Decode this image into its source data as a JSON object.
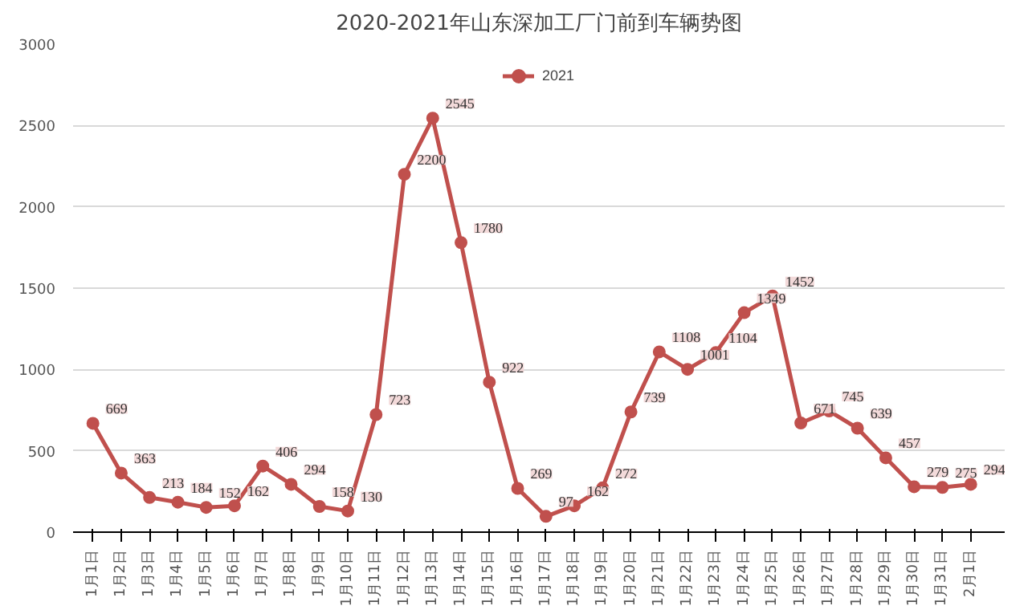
{
  "chart_data": {
    "type": "line",
    "title": "2020-2021年山东深加工厂门前到车辆势图",
    "categories": [
      "1月1日",
      "1月2日",
      "1月3日",
      "1月4日",
      "1月5日",
      "1月6日",
      "1月7日",
      "1月8日",
      "1月9日",
      "1月10日",
      "1月11日",
      "1月12日",
      "1月13日",
      "1月14日",
      "1月15日",
      "1月16日",
      "1月17日",
      "1月18日",
      "1月19日",
      "1月20日",
      "1月21日",
      "1月22日",
      "1月23日",
      "1月24日",
      "1月25日",
      "1月26日",
      "1月27日",
      "1月28日",
      "1月29日",
      "1月30日",
      "1月31日",
      "2月1日"
    ],
    "series": [
      {
        "name": "2021",
        "color": "#c0504d",
        "values": [
          669,
          363,
          213,
          184,
          152,
          162,
          406,
          294,
          158,
          130,
          723,
          2200,
          2545,
          1780,
          922,
          269,
          97,
          162,
          272,
          739,
          1108,
          1001,
          1104,
          1349,
          1452,
          671,
          745,
          639,
          457,
          279,
          275,
          294
        ]
      }
    ],
    "ylim": [
      0,
      3000
    ],
    "yticks": [
      0,
      500,
      1000,
      1500,
      2000,
      2500,
      3000
    ],
    "grid": "y",
    "legend": "top",
    "marker": "circle",
    "data_labels": true
  }
}
